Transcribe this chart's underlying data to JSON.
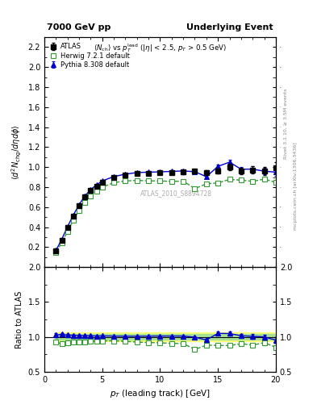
{
  "title_left": "7000 GeV pp",
  "title_right": "Underlying Event",
  "watermark": "ATLAS_2010_S8894728",
  "xlabel": "p_{T} (leading track) [GeV]",
  "ylabel_main": "\\langle d^2 N_{chg}/d\\eta d\\phi \\rangle",
  "ylabel_ratio": "Ratio to ATLAS",
  "ylim_main": [
    0.0,
    2.3
  ],
  "ylim_ratio": [
    0.5,
    2.0
  ],
  "yticks_main": [
    0.2,
    0.4,
    0.6,
    0.8,
    1.0,
    1.2,
    1.4,
    1.6,
    1.8,
    2.0,
    2.2
  ],
  "yticks_ratio": [
    0.5,
    1.0,
    1.5,
    2.0
  ],
  "xlim": [
    0,
    20
  ],
  "xticks": [
    0,
    5,
    10,
    15,
    20
  ],
  "atlas_x": [
    1.0,
    1.5,
    2.0,
    2.5,
    3.0,
    3.5,
    4.0,
    4.5,
    5.0,
    6.0,
    7.0,
    8.0,
    9.0,
    10.0,
    11.0,
    12.0,
    13.0,
    14.0,
    15.0,
    16.0,
    17.0,
    18.0,
    19.0,
    20.0
  ],
  "atlas_y": [
    0.163,
    0.268,
    0.395,
    0.508,
    0.614,
    0.7,
    0.764,
    0.812,
    0.85,
    0.896,
    0.921,
    0.938,
    0.94,
    0.942,
    0.947,
    0.951,
    0.959,
    0.947,
    0.96,
    1.002,
    0.965,
    0.972,
    0.96,
    0.997
  ],
  "atlas_yerr": [
    0.01,
    0.012,
    0.012,
    0.012,
    0.012,
    0.013,
    0.013,
    0.013,
    0.013,
    0.013,
    0.013,
    0.014,
    0.015,
    0.016,
    0.017,
    0.018,
    0.02,
    0.022,
    0.024,
    0.03,
    0.032,
    0.038,
    0.042,
    0.055
  ],
  "herwig_x": [
    1.0,
    1.5,
    2.0,
    2.5,
    3.0,
    3.5,
    4.0,
    4.5,
    5.0,
    6.0,
    7.0,
    8.0,
    9.0,
    10.0,
    11.0,
    12.0,
    13.0,
    14.0,
    15.0,
    16.0,
    17.0,
    18.0,
    19.0,
    20.0
  ],
  "herwig_y": [
    0.15,
    0.242,
    0.359,
    0.47,
    0.57,
    0.65,
    0.715,
    0.76,
    0.8,
    0.845,
    0.862,
    0.868,
    0.863,
    0.862,
    0.858,
    0.86,
    0.786,
    0.833,
    0.843,
    0.877,
    0.87,
    0.858,
    0.88,
    0.848
  ],
  "pythia_x": [
    1.0,
    1.5,
    2.0,
    2.5,
    3.0,
    3.5,
    4.0,
    4.5,
    5.0,
    6.0,
    7.0,
    8.0,
    9.0,
    10.0,
    11.0,
    12.0,
    13.0,
    14.0,
    15.0,
    16.0,
    17.0,
    18.0,
    19.0,
    20.0
  ],
  "pythia_y": [
    0.167,
    0.278,
    0.405,
    0.52,
    0.625,
    0.712,
    0.776,
    0.822,
    0.862,
    0.906,
    0.93,
    0.946,
    0.95,
    0.953,
    0.958,
    0.962,
    0.955,
    0.905,
    1.008,
    1.05,
    0.98,
    0.98,
    0.96,
    0.95
  ],
  "pythia_yerr": [
    0.005,
    0.005,
    0.005,
    0.005,
    0.005,
    0.005,
    0.005,
    0.005,
    0.005,
    0.005,
    0.005,
    0.005,
    0.005,
    0.005,
    0.005,
    0.005,
    0.01,
    0.015,
    0.02,
    0.025,
    0.025,
    0.03,
    0.03,
    0.04
  ],
  "atlas_color": "#000000",
  "herwig_color": "#339933",
  "pythia_color": "#0000CC",
  "yellow_band": "#FFFF66",
  "green_band": "#99DD99"
}
